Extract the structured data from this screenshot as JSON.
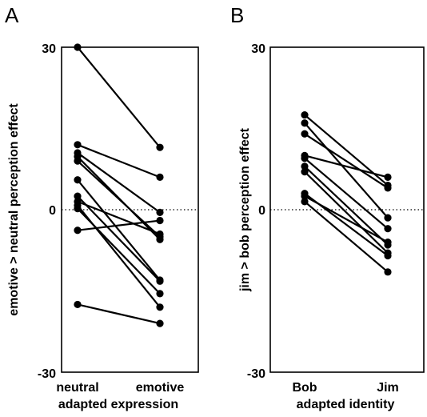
{
  "chart_data": [
    {
      "type": "line",
      "panel_label": "A",
      "categories": [
        "neutral",
        "emotive"
      ],
      "xlabel": "adapted expression",
      "ylabel": "emotive > neutral perception effect",
      "ylim": [
        -30,
        30
      ],
      "yticks": [
        "30",
        "0",
        "-30"
      ],
      "reference_line": 0,
      "pairs": [
        [
          30,
          11.5
        ],
        [
          12,
          6
        ],
        [
          10.5,
          -0.5
        ],
        [
          9.8,
          -5.5
        ],
        [
          9,
          -5
        ],
        [
          5.5,
          -13
        ],
        [
          2.5,
          -13.2
        ],
        [
          1.5,
          -4.5
        ],
        [
          0.8,
          -18
        ],
        [
          0.2,
          -15.5
        ],
        [
          -3.8,
          -2
        ],
        [
          -17.5,
          -21
        ]
      ]
    },
    {
      "type": "line",
      "panel_label": "B",
      "categories": [
        "Bob",
        "Jim"
      ],
      "xlabel": "adapted identity",
      "ylabel": "jim > bob perception effect",
      "ylim": [
        -30,
        30
      ],
      "yticks": [
        "30",
        "0",
        "-30"
      ],
      "reference_line": 0,
      "pairs": [
        [
          17.5,
          4.5
        ],
        [
          16,
          -1.5
        ],
        [
          14,
          4
        ],
        [
          10,
          6
        ],
        [
          9.5,
          -3.5
        ],
        [
          8,
          -6.5
        ],
        [
          7,
          -8
        ],
        [
          3,
          -8.5
        ],
        [
          2.5,
          -6
        ],
        [
          1.5,
          -11.5
        ]
      ]
    }
  ]
}
